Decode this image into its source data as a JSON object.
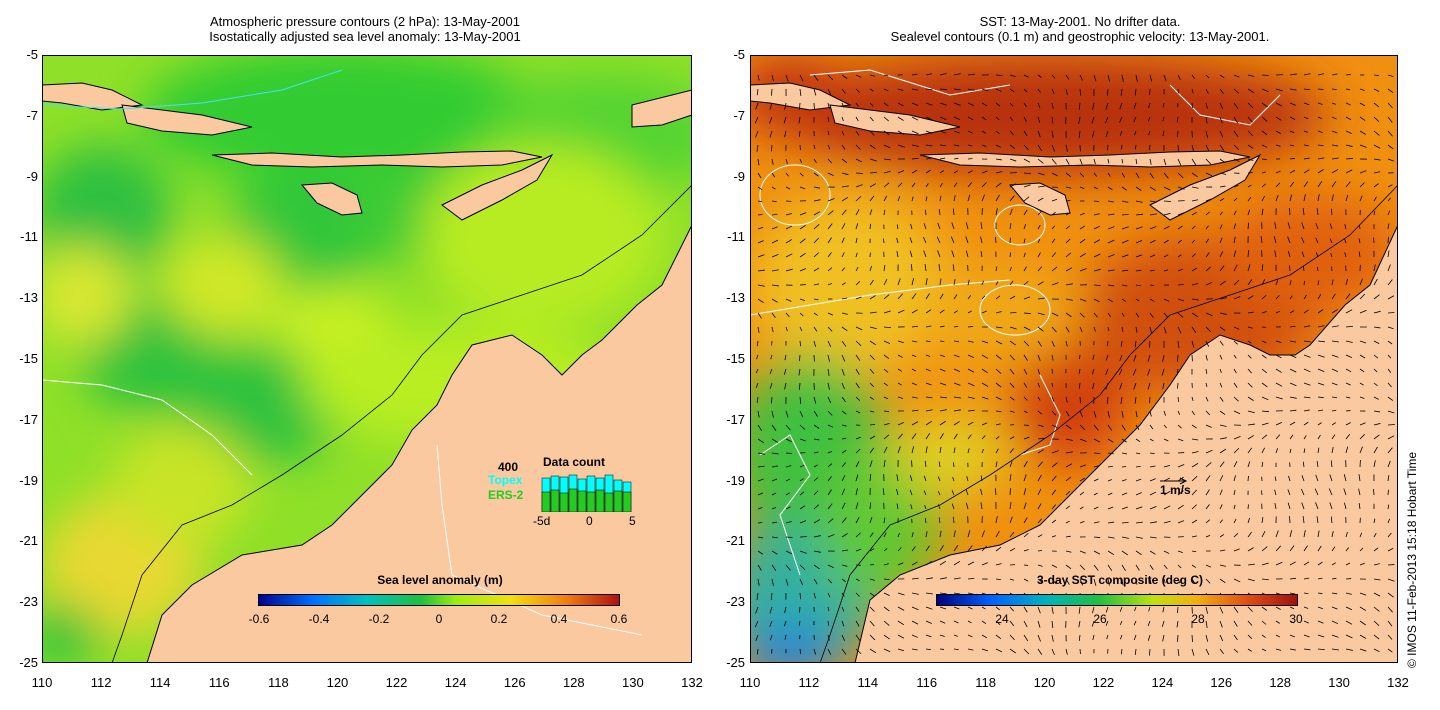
{
  "left_panel": {
    "title_line1": "Atmospheric pressure contours (2 hPa): 13-May-2001",
    "title_line2": "Isostatically adjusted sea level anomaly: 13-May-2001",
    "colorbar": {
      "label": "Sea level anomaly (m)",
      "ticks": [
        "-0.6",
        "-0.4",
        "-0.2",
        "0",
        "0.2",
        "0.4",
        "0.6"
      ]
    },
    "data_count": {
      "title": "Data count",
      "max": "400",
      "topex": "Topex",
      "ers2": "ERS-2",
      "axis": [
        "-5d",
        "0",
        "5"
      ],
      "topex_color": "#00ffff",
      "ers2_color": "#22cc22"
    }
  },
  "right_panel": {
    "title_line1": "SST: 13-May-2001. No drifter data.",
    "title_line2": "Sealevel contours (0.1 m) and geostrophic velocity: 13-May-2001.",
    "colorbar": {
      "label": "3-day SST composite (deg C)",
      "ticks": [
        "24",
        "26",
        "28",
        "30"
      ]
    },
    "scale_label": "1 m/s"
  },
  "axes": {
    "lat_ticks": [
      "-5",
      "-7",
      "-9",
      "-11",
      "-13",
      "-15",
      "-17",
      "-19",
      "-21",
      "-23",
      "-25"
    ],
    "lon_ticks": [
      "110",
      "112",
      "114",
      "116",
      "118",
      "120",
      "122",
      "124",
      "126",
      "128",
      "130",
      "132"
    ]
  },
  "colors": {
    "land": "#fac9a0",
    "coast": "#000000"
  },
  "copyright": "© IMOS 11-Feb-2013 15:18 Hobart Time"
}
